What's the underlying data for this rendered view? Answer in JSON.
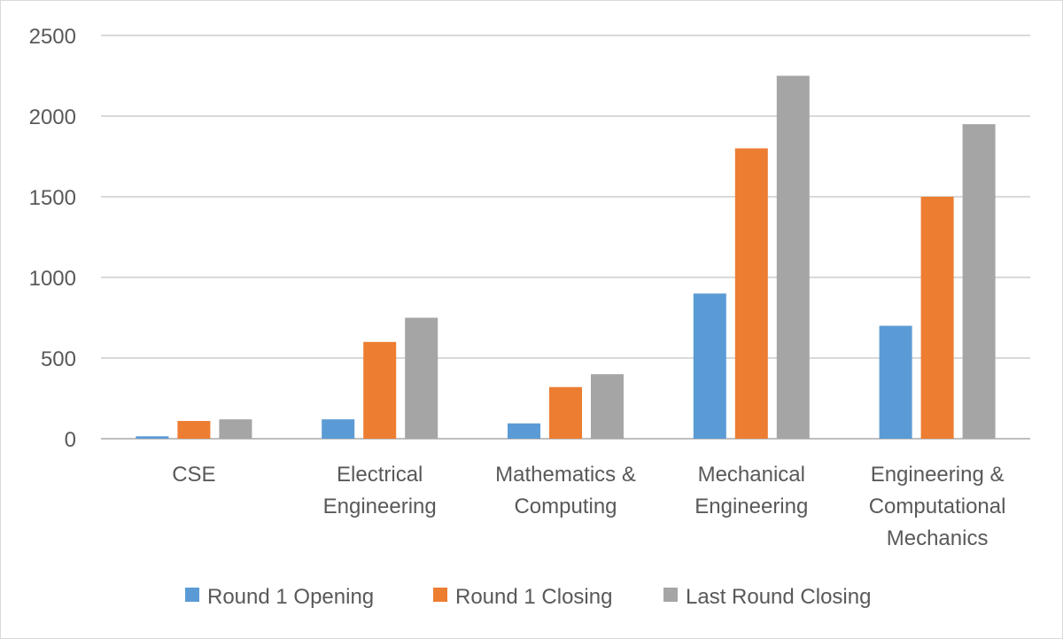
{
  "chart_data": {
    "type": "bar",
    "title": "",
    "xlabel": "",
    "ylabel": "",
    "ylim": [
      0,
      2500
    ],
    "yticks": [
      0,
      500,
      1000,
      1500,
      2000,
      2500
    ],
    "grid": true,
    "legend_position": "bottom",
    "categories": [
      "CSE",
      "Electrical Engineering",
      "Mathematics & Computing",
      "Mechanical Engineering",
      "Engineering & Computational Mechanics"
    ],
    "category_label_lines": [
      [
        "CSE"
      ],
      [
        "Electrical",
        "Engineering"
      ],
      [
        "Mathematics &",
        "Computing"
      ],
      [
        "Mechanical",
        "Engineering"
      ],
      [
        "Engineering &",
        "Computational",
        "Mechanics"
      ]
    ],
    "series": [
      {
        "name": "Round 1 Opening",
        "color": "#5b9bd5",
        "values": [
          15,
          120,
          95,
          900,
          700
        ]
      },
      {
        "name": "Round 1 Closing",
        "color": "#ed7d31",
        "values": [
          110,
          600,
          320,
          1800,
          1500
        ]
      },
      {
        "name": "Last Round Closing",
        "color": "#a5a5a5",
        "values": [
          120,
          750,
          400,
          2250,
          1950
        ]
      }
    ]
  }
}
